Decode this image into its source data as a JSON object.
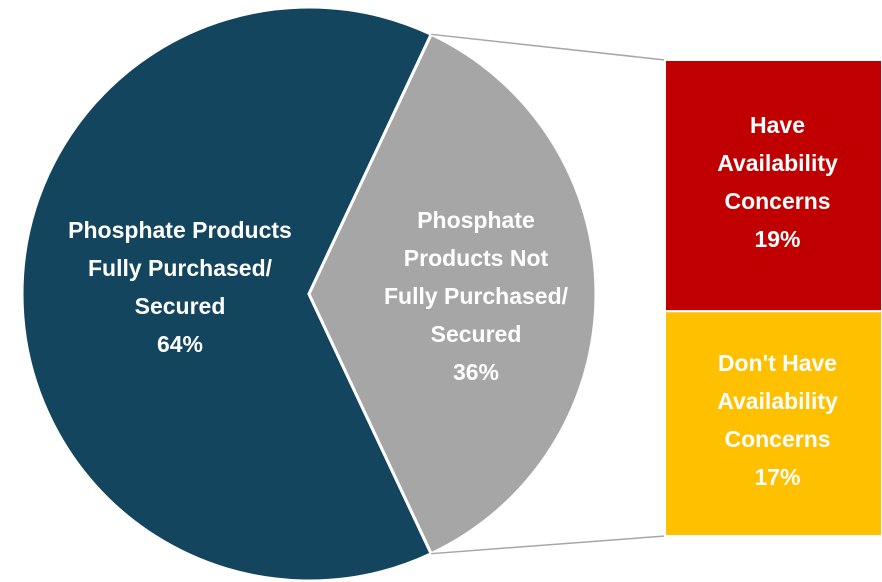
{
  "chart_data": {
    "type": "pie",
    "categories": [
      "Phosphate Products Fully Purchased/ Secured",
      "Phosphate Products Not Fully Purchased/ Secured"
    ],
    "values": [
      64,
      36
    ],
    "value_labels": [
      "64%",
      "36%"
    ],
    "colors": [
      "#13465e",
      "#a6a6a6"
    ],
    "bar": {
      "type": "bar",
      "categories": [
        "Have Availability Concerns",
        "Don't Have Availability Concerns"
      ],
      "values": [
        19,
        17
      ],
      "value_labels": [
        "19%",
        "17%"
      ],
      "colors": [
        "#c00000",
        "#ffc000"
      ]
    }
  }
}
